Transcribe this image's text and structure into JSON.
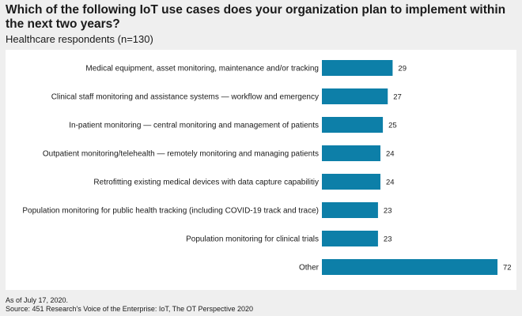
{
  "header": {
    "title": "Which of the following IoT use cases does your organization plan to implement within the next two years?",
    "subtitle": "Healthcare respondents (n=130)"
  },
  "footer": {
    "date_note": "As of July 17, 2020.",
    "source": "Source: 451 Research's Voice of the Enterprise: IoT, The OT Perspective 2020"
  },
  "chart_data": {
    "type": "bar",
    "orientation": "horizontal",
    "title": "Which of the following IoT use cases does your organization plan to implement within the next two years?",
    "subtitle": "Healthcare respondents (n=130)",
    "categories": [
      "Medical equipment, asset monitoring, maintenance and/or tracking",
      "Clinical staff monitoring and assistance systems — workflow and emergency",
      "In-patient monitoring — central monitoring and management of patients",
      "Outpatient monitoring/telehealth — remotely monitoring and managing patients",
      "Retrofitting existing medical devices with data capture capabilitiy",
      "Population monitoring for public health tracking (including COVID-19 track and trace)",
      "Population monitoring for clinical trials",
      "Other"
    ],
    "values": [
      29,
      27,
      25,
      24,
      24,
      23,
      23,
      72
    ],
    "xlim": [
      0,
      72
    ],
    "bar_color": "#0d7fa8",
    "xlabel": "",
    "ylabel": "",
    "grid": false
  }
}
